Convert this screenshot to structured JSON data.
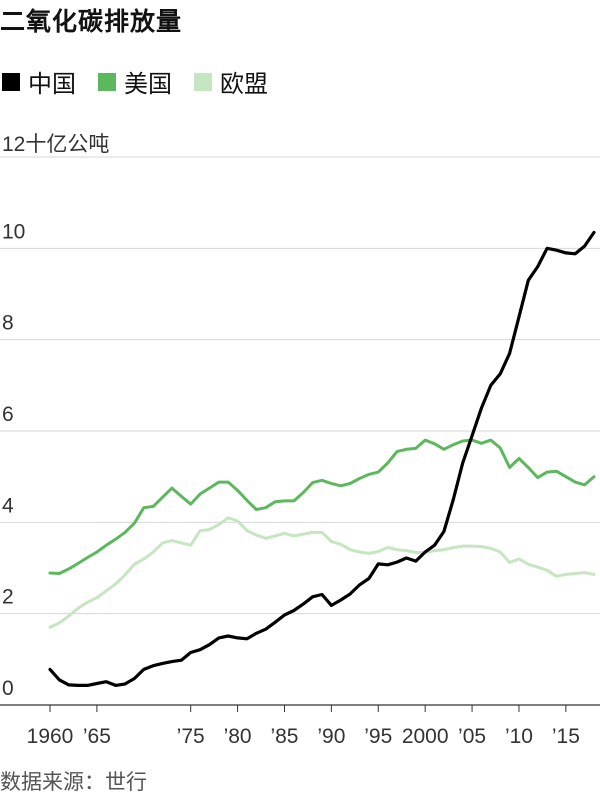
{
  "title": "二氧化碳排放量",
  "legend": [
    {
      "label": "中国",
      "color": "#000000"
    },
    {
      "label": "美国",
      "color": "#5cb85c"
    },
    {
      "label": "欧盟",
      "color": "#c5e6c0"
    }
  ],
  "source": "数据来源：世行",
  "chart_data": {
    "type": "line",
    "title": "二氧化碳排放量",
    "ylabel": "12十亿公吨",
    "xlabel": "",
    "ylim": [
      0,
      12
    ],
    "xlim": [
      1960,
      2018
    ],
    "grid": true,
    "legend_position": "top-left",
    "y_ticks": [
      {
        "value": 0,
        "label": "0"
      },
      {
        "value": 2,
        "label": "2"
      },
      {
        "value": 4,
        "label": "4"
      },
      {
        "value": 6,
        "label": "6"
      },
      {
        "value": 8,
        "label": "8"
      },
      {
        "value": 10,
        "label": "10"
      },
      {
        "value": 12,
        "label": "12十亿公吨"
      }
    ],
    "x_ticks": [
      {
        "value": 1960,
        "label": "1960"
      },
      {
        "value": 1965,
        "label": "’65"
      },
      {
        "value": 1975,
        "label": "’75"
      },
      {
        "value": 1980,
        "label": "’80"
      },
      {
        "value": 1985,
        "label": "’85"
      },
      {
        "value": 1990,
        "label": "’90"
      },
      {
        "value": 1995,
        "label": "’95"
      },
      {
        "value": 2000,
        "label": "2000"
      },
      {
        "value": 2005,
        "label": "’05"
      },
      {
        "value": 2010,
        "label": "’10"
      },
      {
        "value": 2015,
        "label": "’15"
      }
    ],
    "x": [
      1960,
      1961,
      1962,
      1963,
      1964,
      1965,
      1966,
      1967,
      1968,
      1969,
      1970,
      1971,
      1972,
      1973,
      1974,
      1975,
      1976,
      1977,
      1978,
      1979,
      1980,
      1981,
      1982,
      1983,
      1984,
      1985,
      1986,
      1987,
      1988,
      1989,
      1990,
      1991,
      1992,
      1993,
      1994,
      1995,
      1996,
      1997,
      1998,
      1999,
      2000,
      2001,
      2002,
      2003,
      2004,
      2005,
      2006,
      2007,
      2008,
      2009,
      2010,
      2011,
      2012,
      2013,
      2014,
      2015,
      2016,
      2017,
      2018
    ],
    "series": [
      {
        "name": "中国",
        "color": "#000000",
        "values": [
          0.78,
          0.55,
          0.44,
          0.43,
          0.43,
          0.47,
          0.51,
          0.43,
          0.46,
          0.58,
          0.78,
          0.86,
          0.91,
          0.95,
          0.98,
          1.15,
          1.21,
          1.32,
          1.47,
          1.51,
          1.47,
          1.45,
          1.57,
          1.66,
          1.81,
          1.97,
          2.07,
          2.21,
          2.37,
          2.42,
          2.18,
          2.3,
          2.43,
          2.63,
          2.77,
          3.09,
          3.07,
          3.13,
          3.22,
          3.15,
          3.35,
          3.5,
          3.8,
          4.5,
          5.3,
          5.9,
          6.5,
          7.0,
          7.25,
          7.7,
          8.5,
          9.3,
          9.6,
          10.0,
          9.96,
          9.9,
          9.88,
          10.05,
          10.35
        ]
      },
      {
        "name": "美国",
        "color": "#5cb85c",
        "values": [
          2.89,
          2.88,
          2.98,
          3.1,
          3.23,
          3.35,
          3.5,
          3.63,
          3.78,
          3.98,
          4.32,
          4.35,
          4.55,
          4.75,
          4.57,
          4.4,
          4.62,
          4.75,
          4.88,
          4.88,
          4.7,
          4.48,
          4.28,
          4.32,
          4.45,
          4.47,
          4.47,
          4.65,
          4.87,
          4.92,
          4.85,
          4.8,
          4.85,
          4.96,
          5.05,
          5.1,
          5.3,
          5.55,
          5.6,
          5.62,
          5.8,
          5.72,
          5.6,
          5.7,
          5.78,
          5.8,
          5.73,
          5.8,
          5.63,
          5.2,
          5.4,
          5.2,
          4.98,
          5.1,
          5.12,
          5.0,
          4.88,
          4.82,
          5.0
        ]
      },
      {
        "name": "欧盟",
        "color": "#c5e6c0",
        "values": [
          1.7,
          1.8,
          1.95,
          2.12,
          2.25,
          2.35,
          2.5,
          2.65,
          2.85,
          3.08,
          3.2,
          3.35,
          3.55,
          3.6,
          3.55,
          3.5,
          3.82,
          3.84,
          3.95,
          4.1,
          4.03,
          3.82,
          3.72,
          3.65,
          3.7,
          3.76,
          3.7,
          3.74,
          3.78,
          3.78,
          3.58,
          3.52,
          3.4,
          3.35,
          3.32,
          3.36,
          3.45,
          3.4,
          3.38,
          3.34,
          3.34,
          3.38,
          3.4,
          3.45,
          3.48,
          3.48,
          3.47,
          3.43,
          3.35,
          3.12,
          3.2,
          3.08,
          3.02,
          2.95,
          2.82,
          2.86,
          2.88,
          2.9,
          2.86
        ]
      }
    ]
  }
}
